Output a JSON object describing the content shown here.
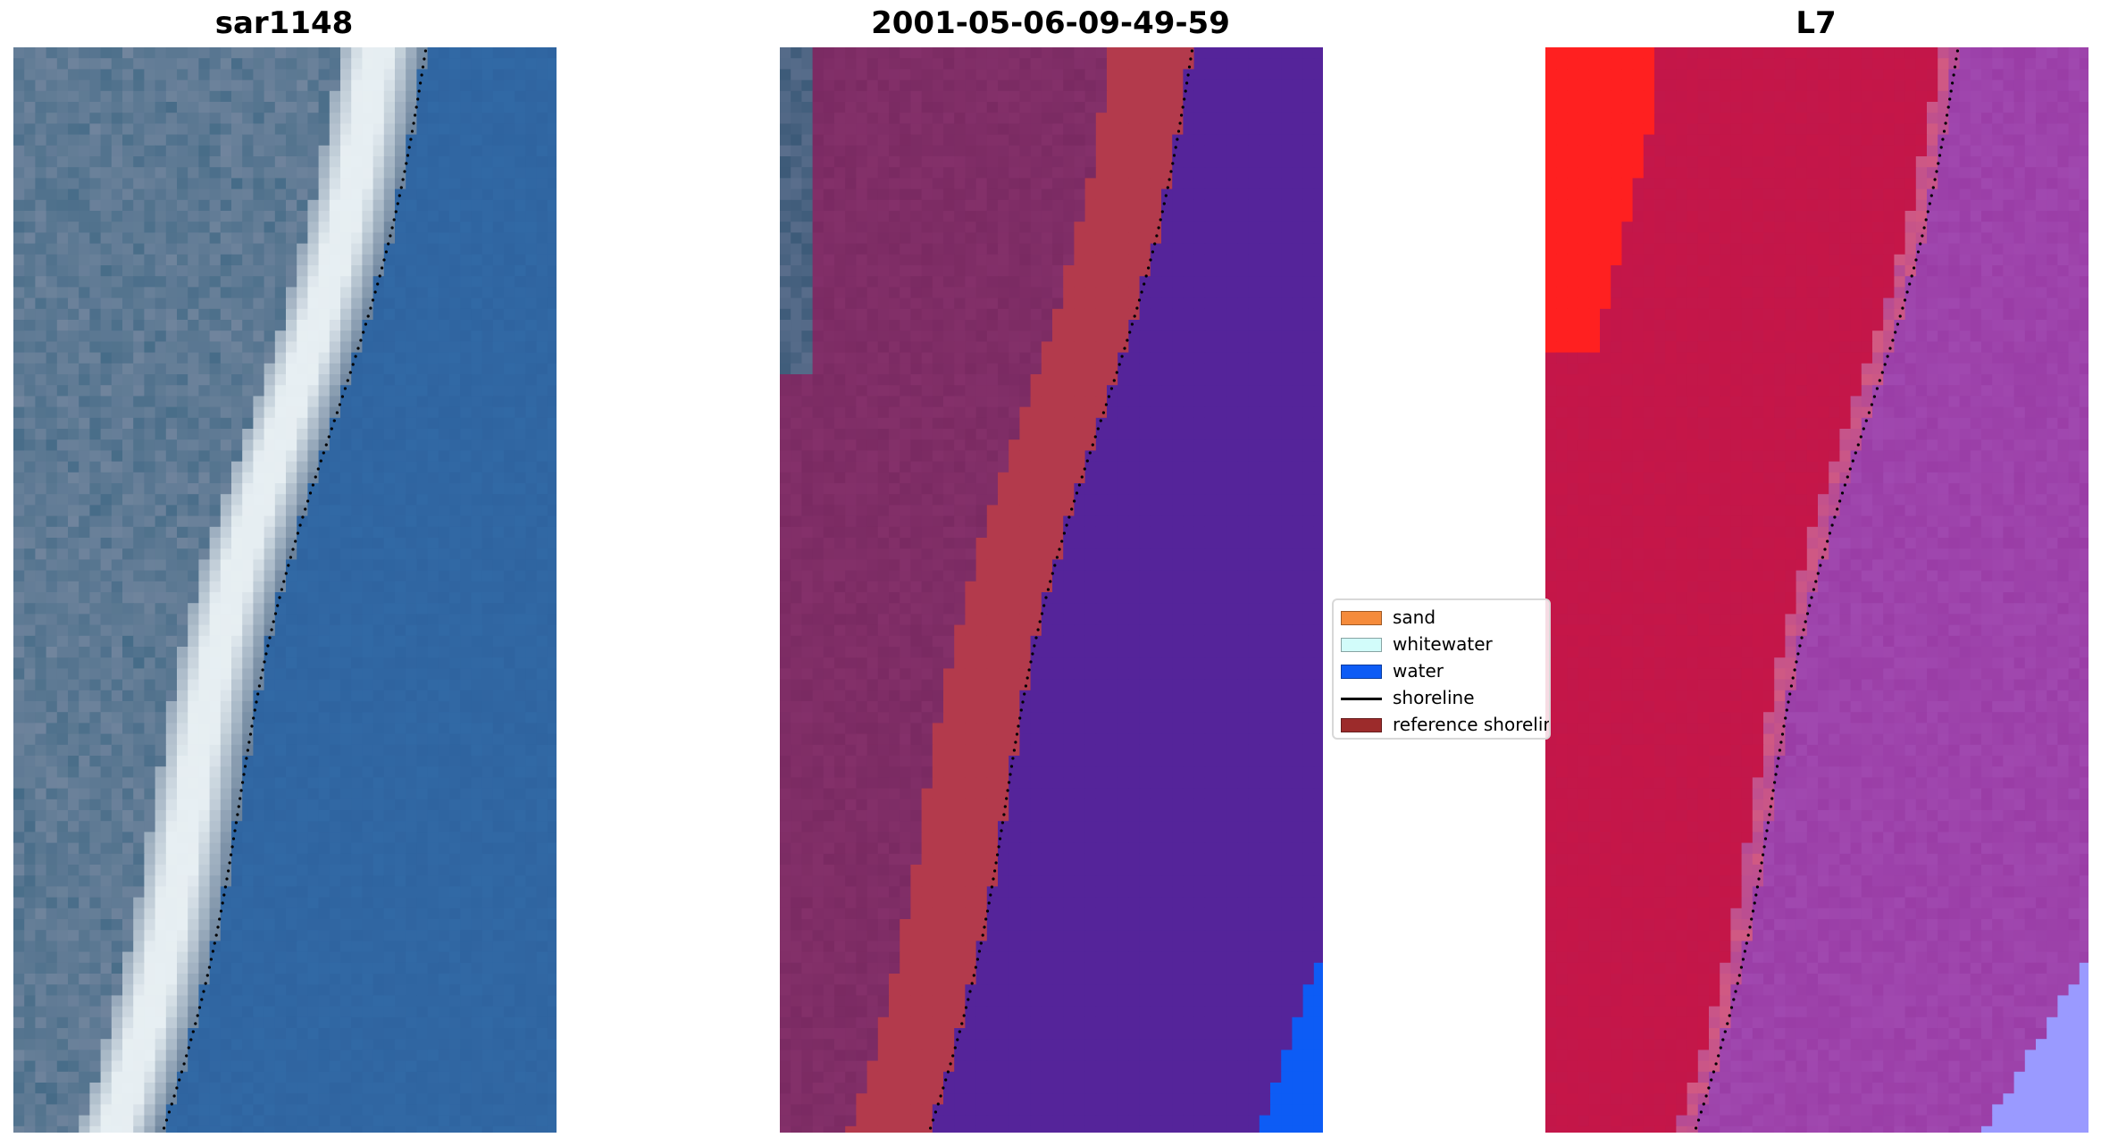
{
  "panels": [
    {
      "title": "sar1148",
      "kind": "rgb"
    },
    {
      "title": "2001-05-06-09-49-59",
      "kind": "classified"
    },
    {
      "title": "L7",
      "kind": "index"
    }
  ],
  "legend": {
    "items": [
      {
        "label": "sand",
        "color": "#f58b3b",
        "type": "patch"
      },
      {
        "label": "whitewater",
        "color": "#d2fcfa",
        "type": "patch"
      },
      {
        "label": "water",
        "color": "#0d5cf5",
        "type": "patch"
      },
      {
        "label": "shoreline",
        "color": "#000000",
        "type": "line"
      },
      {
        "label": "reference shoreline",
        "color": "#9c2b2b",
        "type": "patch"
      }
    ]
  },
  "colors": {
    "rgb_water": "#2f64a0",
    "rgb_land": "#667e98",
    "rgb_beach": "#e6eef2",
    "class_land": "#7a2a62",
    "class_sand_overlay": "#b33a4c",
    "class_water_overlay": "#55249a",
    "class_water": "#0d5cf5",
    "index_land": "#c2174a",
    "index_water": "#9a3da6",
    "index_bright": "#ff2020",
    "index_pale": "#9a9aff"
  }
}
